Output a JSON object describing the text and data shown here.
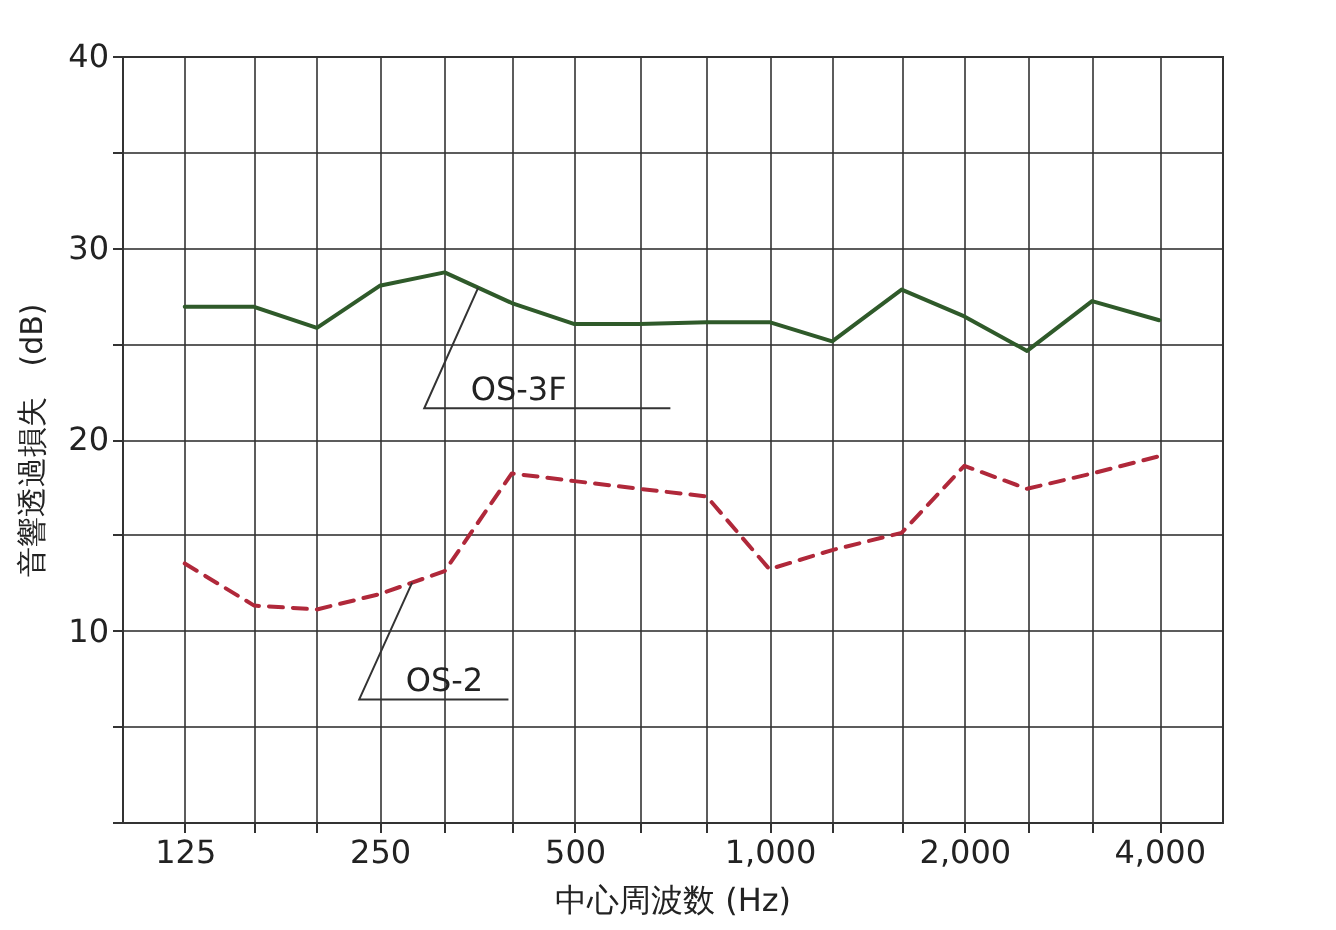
{
  "chart_data": {
    "type": "line",
    "xlabel": "中心周波数 (Hz)",
    "ylabel": "音響透過損失　(dB)",
    "x": [
      125,
      160,
      200,
      250,
      315,
      400,
      500,
      630,
      800,
      1000,
      1250,
      1600,
      2000,
      2500,
      3150,
      4000
    ],
    "series": [
      {
        "name": "OS-3F",
        "color": "#2f5a2a",
        "line_style": "solid",
        "values": [
          26.9,
          26.9,
          25.8,
          28.0,
          28.7,
          27.1,
          26.0,
          26.0,
          26.1,
          26.1,
          25.1,
          27.8,
          26.4,
          24.6,
          27.2,
          26.2
        ]
      },
      {
        "name": "OS-2",
        "color": "#b0283a",
        "line_style": "dashed",
        "values": [
          13.5,
          11.3,
          11.1,
          11.9,
          13.1,
          18.2,
          17.8,
          17.4,
          17.0,
          13.2,
          14.2,
          15.1,
          18.6,
          17.4,
          18.2,
          19.1
        ]
      }
    ],
    "log": "x",
    "xlim": [
      100,
      5000
    ],
    "xticks": [
      {
        "value": 125,
        "label": "125"
      },
      {
        "value": 160,
        "label": null
      },
      {
        "value": 200,
        "label": null
      },
      {
        "value": 250,
        "label": "250"
      },
      {
        "value": 315,
        "label": null
      },
      {
        "value": 400,
        "label": null
      },
      {
        "value": 500,
        "label": "500"
      },
      {
        "value": 630,
        "label": null
      },
      {
        "value": 800,
        "label": null
      },
      {
        "value": 1000,
        "label": "1,000"
      },
      {
        "value": 1250,
        "label": null
      },
      {
        "value": 1600,
        "label": null
      },
      {
        "value": 2000,
        "label": "2,000"
      },
      {
        "value": 2500,
        "label": null
      },
      {
        "value": 3150,
        "label": null
      },
      {
        "value": 4000,
        "label": "4,000"
      }
    ],
    "ylim": [
      0,
      40
    ],
    "yticks": [
      {
        "value": 0,
        "label": null
      },
      {
        "value": 5,
        "label": null
      },
      10,
      {
        "value": 15,
        "label": null
      },
      20,
      {
        "value": 25,
        "label": null
      },
      30,
      {
        "value": 35,
        "label": null
      },
      40
    ],
    "grid": true,
    "marker": "none"
  }
}
